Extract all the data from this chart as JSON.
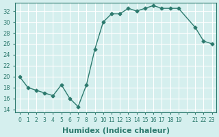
{
  "x": [
    0,
    1,
    2,
    3,
    4,
    5,
    6,
    7,
    8,
    9,
    10,
    11,
    12,
    13,
    14,
    15,
    16,
    17,
    18,
    19,
    21,
    22,
    23
  ],
  "y": [
    20,
    18,
    17.5,
    17,
    16.5,
    18.5,
    16,
    14.5,
    18.5,
    25,
    30,
    31.5,
    31.5,
    32.5,
    32,
    32.5,
    33,
    32.5,
    32.5,
    32.5,
    29,
    26.5,
    26
  ],
  "line_color": "#2d7a6e",
  "marker": "D",
  "marker_size": 2.5,
  "bg_color": "#d5efee",
  "grid_color": "#ffffff",
  "tick_color": "#2d7a6e",
  "xlabel": "Humidex (Indice chaleur)",
  "xlabel_fontsize": 8,
  "ylabel_ticks": [
    14,
    16,
    18,
    20,
    22,
    24,
    26,
    28,
    30,
    32
  ],
  "ylim": [
    13.5,
    33.5
  ],
  "xlim": [
    -0.5,
    23.5
  ],
  "xticks": [
    0,
    1,
    2,
    3,
    4,
    5,
    6,
    7,
    8,
    9,
    10,
    11,
    12,
    13,
    14,
    15,
    16,
    17,
    18,
    19,
    20,
    21,
    22,
    23
  ],
  "xtick_labels": [
    "0",
    "1",
    "2",
    "3",
    "4",
    "5",
    "6",
    "7",
    "8",
    "9",
    "10",
    "11",
    "12",
    "13",
    "14",
    "15",
    "16",
    "17",
    "18",
    "19",
    "",
    "21",
    "22",
    "23"
  ]
}
